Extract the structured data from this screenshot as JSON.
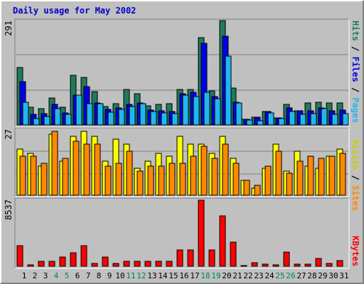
{
  "chart_data": [
    {
      "type": "bar",
      "title": "Daily usage for May 2002",
      "ymax_label": "291",
      "ylim": [
        0,
        291
      ],
      "right_label": {
        "pages": "Pages",
        "sep1": " / ",
        "files": "Files",
        "sep2": " / ",
        "hits": "Hits"
      },
      "categories": [
        "1",
        "2",
        "3",
        "4",
        "5",
        "6",
        "7",
        "8",
        "9",
        "10",
        "11",
        "12",
        "13",
        "14",
        "15",
        "16",
        "17",
        "18",
        "19",
        "20",
        "21",
        "22",
        "23",
        "24",
        "25",
        "26",
        "27",
        "28",
        "29",
        "30",
        "31"
      ],
      "weekend_days": [
        "4",
        "5",
        "11",
        "12",
        "18",
        "19",
        "25",
        "26"
      ],
      "series": [
        {
          "name": "Hits",
          "color": "#1f7a5c",
          "values": [
            160,
            50,
            45,
            75,
            50,
            138,
            133,
            93,
            51,
            60,
            99,
            88,
            53,
            58,
            59,
            98,
            99,
            244,
            96,
            291,
            103,
            15,
            21,
            38,
            20,
            58,
            40,
            61,
            64,
            61,
            61
          ]
        },
        {
          "name": "Files",
          "color": "#0000e8",
          "values": [
            120,
            30,
            32,
            57,
            33,
            84,
            106,
            62,
            44,
            47,
            57,
            62,
            42,
            39,
            37,
            88,
            91,
            228,
            80,
            248,
            63,
            15,
            21,
            37,
            19,
            48,
            40,
            39,
            47,
            39,
            41
          ]
        },
        {
          "name": "Pages",
          "color": "#22b6ee",
          "values": [
            64,
            18,
            24,
            45,
            29,
            84,
            59,
            60,
            36,
            44,
            52,
            59,
            37,
            33,
            32,
            84,
            80,
            92,
            74,
            193,
            61,
            13,
            12,
            34,
            18,
            37,
            30,
            31,
            45,
            30,
            32
          ]
        }
      ]
    },
    {
      "type": "bar",
      "ymax_label": "27",
      "ylim": [
        0,
        27
      ],
      "right_label": {
        "sites": "Sites",
        "sep": " / ",
        "visits": "Visits"
      },
      "categories": [
        "1",
        "2",
        "3",
        "4",
        "5",
        "6",
        "7",
        "8",
        "9",
        "10",
        "11",
        "12",
        "13",
        "14",
        "15",
        "16",
        "17",
        "18",
        "19",
        "20",
        "21",
        "22",
        "23",
        "24",
        "25",
        "26",
        "27",
        "28",
        "29",
        "30",
        "31"
      ],
      "series": [
        {
          "name": "Visits",
          "color": "#ffff00",
          "values": [
            19,
            17,
            12,
            25,
            14,
            24,
            26,
            24,
            14,
            23,
            21,
            11,
            14,
            17,
            16,
            24,
            21,
            21,
            17,
            24,
            15,
            6,
            3,
            11,
            21,
            10,
            18,
            12,
            11,
            16,
            19
          ]
        },
        {
          "name": "Sites",
          "color": "#ff8800",
          "values": [
            16,
            16,
            13,
            26,
            15,
            22,
            21,
            21,
            12,
            13,
            18,
            10,
            12,
            12,
            13,
            13,
            16,
            20,
            15,
            21,
            13,
            6,
            4,
            12,
            18,
            9,
            14,
            16,
            15,
            16,
            17
          ]
        }
      ]
    },
    {
      "type": "bar",
      "ymax_label": "8537",
      "ylim": [
        0,
        8537
      ],
      "right_label": {
        "kbytes": "KBytes"
      },
      "categories": [
        "1",
        "2",
        "3",
        "4",
        "5",
        "6",
        "7",
        "8",
        "9",
        "10",
        "11",
        "12",
        "13",
        "14",
        "15",
        "16",
        "17",
        "18",
        "19",
        "20",
        "21",
        "22",
        "23",
        "24",
        "25",
        "26",
        "27",
        "28",
        "29",
        "30",
        "31"
      ],
      "series": [
        {
          "name": "KBytes",
          "color": "#ff0000",
          "values": [
            2650,
            200,
            600,
            600,
            1150,
            1790,
            2680,
            350,
            1150,
            330,
            600,
            670,
            600,
            600,
            630,
            2070,
            2070,
            8537,
            2070,
            6490,
            3160,
            100,
            500,
            260,
            180,
            1880,
            250,
            260,
            1000,
            350,
            770
          ]
        }
      ]
    }
  ],
  "colors": {
    "title": "#0000cc",
    "weekday_label": "#000000",
    "weekend_label": "#00805f",
    "panel_bg": "#c0c0c0",
    "grid": "#808080",
    "bar_outline": "#000000"
  }
}
